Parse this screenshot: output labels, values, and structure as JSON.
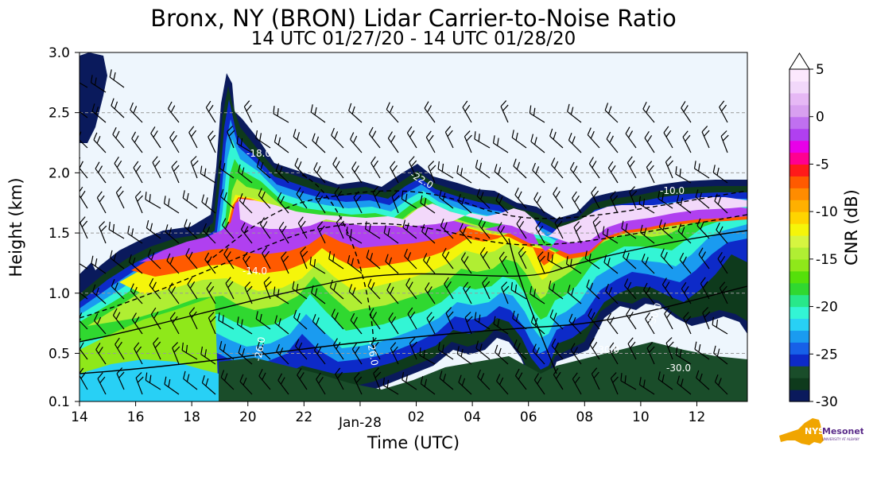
{
  "chart_data": {
    "type": "heatmap",
    "title": "Bronx, NY (BRON) Lidar Carrier-to-Noise Ratio",
    "subtitle": "14 UTC 01/27/20 - 14 UTC 01/28/20",
    "xlabel": "Time (UTC)",
    "ylabel": "Height (km)",
    "x_ticks": [
      "14",
      "16",
      "18",
      "20",
      "22",
      "Jan-28",
      "02",
      "04",
      "06",
      "08",
      "10",
      "12"
    ],
    "x_tick_hours": [
      0,
      2,
      4,
      6,
      8,
      10,
      12,
      14,
      16,
      18,
      20,
      22
    ],
    "xlim_hours": [
      0,
      23.8
    ],
    "y_ticks": [
      "0.1",
      "0.5",
      "1.0",
      "1.5",
      "2.0",
      "2.5",
      "3.0"
    ],
    "y_tick_values": [
      0.1,
      0.5,
      1.0,
      1.5,
      2.0,
      2.5,
      3.0
    ],
    "ylim": [
      0.1,
      3.0
    ],
    "colorbar": {
      "label": "CNR (dB)",
      "ticks": [
        "5",
        "0",
        "-5",
        "-10",
        "-15",
        "-20",
        "-25",
        "-30"
      ],
      "tick_values": [
        5,
        0,
        -5,
        -10,
        -15,
        -20,
        -25,
        -30
      ],
      "range": [
        -30,
        5
      ],
      "colors": [
        "#0a1a5c",
        "#0e3a1c",
        "#1a4d2a",
        "#0d2ac8",
        "#1760e8",
        "#1a9bf0",
        "#28d0f5",
        "#33f5d5",
        "#28e88a",
        "#30d830",
        "#55e00a",
        "#8fe81a",
        "#b0ee33",
        "#d6f540",
        "#f5f50a",
        "#ffd400",
        "#ffb000",
        "#ff8c00",
        "#ff5a00",
        "#ff1a1a",
        "#ff0090",
        "#e800e8",
        "#b040f0",
        "#c070f0",
        "#d8a0f0",
        "#e6b8f5",
        "#f2d8fa",
        "#fce8fd"
      ]
    },
    "contour_labels": [
      "-18.0",
      "-30.0",
      "-26.0",
      "-22.0",
      "-10.0",
      "-14.0"
    ],
    "notes": "CNR heatmap with overlaid temperature contours and wind barbs; aerosol layer near 1.0-2.0 km."
  },
  "logo": {
    "text": "NYS Mesonet",
    "subtext": "UNIVERSITY AT ALBANY"
  }
}
